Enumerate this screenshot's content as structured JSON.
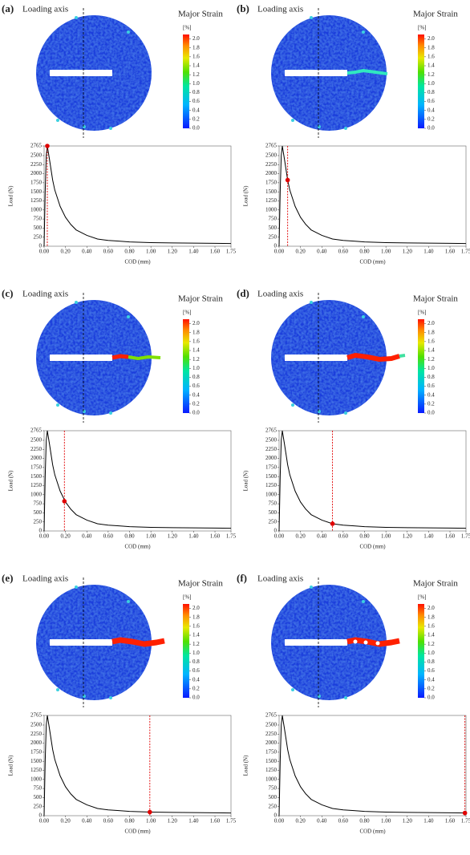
{
  "panels": [
    {
      "label": "(a)",
      "loading_axis": "Loading axis",
      "legend_title": "Major Strain",
      "colorbar": {
        "unit": "[%]",
        "lim": [
          0,
          2.1
        ],
        "ticks": [
          {
            "value": 0,
            "label": "0.0"
          },
          {
            "value": 0.2,
            "label": "0.2"
          },
          {
            "value": 0.4,
            "label": "0.4"
          },
          {
            "value": 0.6,
            "label": "0.6"
          },
          {
            "value": 0.8,
            "label": "0.8"
          },
          {
            "value": 1,
            "label": "1.0"
          },
          {
            "value": 1.2,
            "label": "1.2"
          },
          {
            "value": 1.4,
            "label": "1.4"
          },
          {
            "value": 1.6,
            "label": "1.6"
          },
          {
            "value": 1.8,
            "label": "1.8"
          },
          {
            "value": 2,
            "label": "2.0"
          }
        ]
      }
    },
    {
      "label": "(b)",
      "loading_axis": "Loading axis",
      "legend_title": "Major Strain",
      "colorbar": {
        "unit": "[%]",
        "lim": [
          0,
          2.1
        ],
        "ticks": [
          {
            "value": 0,
            "label": "0.0"
          },
          {
            "value": 0.2,
            "label": "0.2"
          },
          {
            "value": 0.4,
            "label": "0.4"
          },
          {
            "value": 0.6,
            "label": "0.6"
          },
          {
            "value": 0.8,
            "label": "0.8"
          },
          {
            "value": 1,
            "label": "1.0"
          },
          {
            "value": 1.2,
            "label": "1.2"
          },
          {
            "value": 1.4,
            "label": "1.4"
          },
          {
            "value": 1.6,
            "label": "1.6"
          },
          {
            "value": 1.8,
            "label": "1.8"
          },
          {
            "value": 2,
            "label": "2.0"
          }
        ]
      }
    },
    {
      "label": "(c)",
      "loading_axis": "Loading axis",
      "legend_title": "Major Strain",
      "colorbar": {
        "unit": "[%]",
        "lim": [
          0,
          2.1
        ],
        "ticks": [
          {
            "value": 0,
            "label": "0.0"
          },
          {
            "value": 0.2,
            "label": "0.2"
          },
          {
            "value": 0.4,
            "label": "0.4"
          },
          {
            "value": 0.6,
            "label": "0.6"
          },
          {
            "value": 0.8,
            "label": "0.8"
          },
          {
            "value": 1,
            "label": "1.0"
          },
          {
            "value": 1.2,
            "label": "1.2"
          },
          {
            "value": 1.4,
            "label": "1.4"
          },
          {
            "value": 1.6,
            "label": "1.6"
          },
          {
            "value": 1.8,
            "label": "1.8"
          },
          {
            "value": 2,
            "label": "2.0"
          }
        ]
      }
    },
    {
      "label": "(d)",
      "loading_axis": "Loading axis",
      "legend_title": "Major Strain",
      "colorbar": {
        "unit": "[%]",
        "lim": [
          0,
          2.1
        ],
        "ticks": [
          {
            "value": 0,
            "label": "0.0"
          },
          {
            "value": 0.2,
            "label": "0.2"
          },
          {
            "value": 0.4,
            "label": "0.4"
          },
          {
            "value": 0.6,
            "label": "0.6"
          },
          {
            "value": 0.8,
            "label": "0.8"
          },
          {
            "value": 1,
            "label": "1.0"
          },
          {
            "value": 1.2,
            "label": "1.2"
          },
          {
            "value": 1.4,
            "label": "1.4"
          },
          {
            "value": 1.6,
            "label": "1.6"
          },
          {
            "value": 1.8,
            "label": "1.8"
          },
          {
            "value": 2,
            "label": "2.0"
          }
        ]
      }
    },
    {
      "label": "(e)",
      "loading_axis": "Loading axis",
      "legend_title": "Major Strain",
      "colorbar": {
        "unit": "[%]",
        "lim": [
          0,
          2.1
        ],
        "ticks": [
          {
            "value": 0,
            "label": "0.0"
          },
          {
            "value": 0.2,
            "label": "0.2"
          },
          {
            "value": 0.4,
            "label": "0.4"
          },
          {
            "value": 0.6,
            "label": "0.6"
          },
          {
            "value": 0.8,
            "label": "0.8"
          },
          {
            "value": 1,
            "label": "1.0"
          },
          {
            "value": 1.2,
            "label": "1.2"
          },
          {
            "value": 1.4,
            "label": "1.4"
          },
          {
            "value": 1.6,
            "label": "1.6"
          },
          {
            "value": 1.8,
            "label": "1.8"
          },
          {
            "value": 2,
            "label": "2.0"
          }
        ]
      }
    },
    {
      "label": "(f)",
      "loading_axis": "Loading axis",
      "legend_title": "Major Strain",
      "colorbar": {
        "unit": "[%]",
        "lim": [
          0,
          2.1
        ],
        "ticks": [
          {
            "value": 0,
            "label": "0.0"
          },
          {
            "value": 0.2,
            "label": "0.2"
          },
          {
            "value": 0.4,
            "label": "0.4"
          },
          {
            "value": 0.6,
            "label": "0.6"
          },
          {
            "value": 0.8,
            "label": "0.8"
          },
          {
            "value": 1,
            "label": "1.0"
          },
          {
            "value": 1.2,
            "label": "1.2"
          },
          {
            "value": 1.4,
            "label": "1.4"
          },
          {
            "value": 1.6,
            "label": "1.6"
          },
          {
            "value": 1.8,
            "label": "1.8"
          },
          {
            "value": 2,
            "label": "2.0"
          }
        ]
      }
    }
  ],
  "chart_data": [
    {
      "type": "line",
      "x_label": "COD (mm)",
      "y_label": "Load (N)",
      "color": "#000000",
      "x": [
        0,
        0.01,
        0.02,
        0.03,
        0.05,
        0.08,
        0.1,
        0.15,
        0.2,
        0.25,
        0.3,
        0.4,
        0.5,
        0.6,
        0.7,
        0.8,
        1.0,
        1.2,
        1.4,
        1.6,
        1.75
      ],
      "values": [
        0,
        1500,
        2500,
        2765,
        2400,
        1825,
        1550,
        1100,
        800,
        600,
        450,
        300,
        200,
        160,
        140,
        120,
        100,
        90,
        85,
        80,
        75
      ],
      "xlim": [
        0,
        1.75
      ],
      "ylim": [
        0,
        2765
      ],
      "xticks": [
        {
          "value": 0,
          "label": "0.00"
        },
        {
          "value": 0.2,
          "label": "0.20"
        },
        {
          "value": 0.4,
          "label": "0.40"
        },
        {
          "value": 0.6,
          "label": "0.60"
        },
        {
          "value": 0.8,
          "label": "0.80"
        },
        {
          "value": 1,
          "label": "1.00"
        },
        {
          "value": 1.2,
          "label": "1.20"
        },
        {
          "value": 1.4,
          "label": "1.40"
        },
        {
          "value": 1.6,
          "label": "1.60"
        },
        {
          "value": 1.75,
          "label": "1.75"
        }
      ],
      "yticks": [
        0,
        250,
        500,
        750,
        1000,
        1250,
        1500,
        1750,
        2000,
        2250,
        2500,
        2765
      ],
      "marker": {
        "x": 0.03,
        "y": 2765,
        "color": "#e00000"
      }
    },
    {
      "type": "line",
      "x_label": "COD (mm)",
      "y_label": "Load (N)",
      "color": "#000000",
      "x": [
        0,
        0.01,
        0.02,
        0.03,
        0.05,
        0.08,
        0.1,
        0.15,
        0.2,
        0.25,
        0.3,
        0.4,
        0.5,
        0.6,
        0.7,
        0.8,
        1.0,
        1.2,
        1.4,
        1.6,
        1.75
      ],
      "values": [
        0,
        1500,
        2500,
        2765,
        2400,
        1825,
        1550,
        1100,
        800,
        600,
        450,
        300,
        200,
        160,
        140,
        120,
        100,
        90,
        85,
        80,
        75
      ],
      "xlim": [
        0,
        1.75
      ],
      "ylim": [
        0,
        2765
      ],
      "xticks": [
        {
          "value": 0,
          "label": "0.00"
        },
        {
          "value": 0.2,
          "label": "0.20"
        },
        {
          "value": 0.4,
          "label": "0.40"
        },
        {
          "value": 0.6,
          "label": "0.60"
        },
        {
          "value": 0.8,
          "label": "0.80"
        },
        {
          "value": 1,
          "label": "1.00"
        },
        {
          "value": 1.2,
          "label": "1.20"
        },
        {
          "value": 1.4,
          "label": "1.40"
        },
        {
          "value": 1.6,
          "label": "1.60"
        },
        {
          "value": 1.75,
          "label": "1.75"
        }
      ],
      "yticks": [
        0,
        250,
        500,
        750,
        1000,
        1250,
        1500,
        1750,
        2000,
        2250,
        2500,
        2765
      ],
      "marker": {
        "x": 0.08,
        "y": 1825,
        "color": "#e00000"
      }
    },
    {
      "type": "line",
      "x_label": "COD (mm)",
      "y_label": "Load (N)",
      "color": "#000000",
      "x": [
        0,
        0.01,
        0.02,
        0.03,
        0.05,
        0.08,
        0.1,
        0.15,
        0.2,
        0.25,
        0.3,
        0.4,
        0.5,
        0.6,
        0.7,
        0.8,
        1.0,
        1.2,
        1.4,
        1.6,
        1.75
      ],
      "values": [
        0,
        1500,
        2500,
        2765,
        2400,
        1825,
        1550,
        1100,
        800,
        600,
        450,
        300,
        200,
        160,
        140,
        120,
        100,
        90,
        85,
        80,
        75
      ],
      "xlim": [
        0,
        1.75
      ],
      "ylim": [
        0,
        2765
      ],
      "xticks": [
        {
          "value": 0,
          "label": "0.00"
        },
        {
          "value": 0.2,
          "label": "0.20"
        },
        {
          "value": 0.4,
          "label": "0.40"
        },
        {
          "value": 0.6,
          "label": "0.60"
        },
        {
          "value": 0.8,
          "label": "0.80"
        },
        {
          "value": 1,
          "label": "1.00"
        },
        {
          "value": 1.2,
          "label": "1.20"
        },
        {
          "value": 1.4,
          "label": "1.40"
        },
        {
          "value": 1.6,
          "label": "1.60"
        },
        {
          "value": 1.75,
          "label": "1.75"
        }
      ],
      "yticks": [
        0,
        250,
        500,
        750,
        1000,
        1250,
        1500,
        1750,
        2000,
        2250,
        2500,
        2765
      ],
      "marker": {
        "x": 0.19,
        "y": 820,
        "color": "#e00000"
      }
    },
    {
      "type": "line",
      "x_label": "COD (mm)",
      "y_label": "Load (N)",
      "color": "#000000",
      "x": [
        0,
        0.01,
        0.02,
        0.03,
        0.05,
        0.08,
        0.1,
        0.15,
        0.2,
        0.25,
        0.3,
        0.4,
        0.5,
        0.6,
        0.7,
        0.8,
        1.0,
        1.2,
        1.4,
        1.6,
        1.75
      ],
      "values": [
        0,
        1500,
        2500,
        2765,
        2400,
        1825,
        1550,
        1100,
        800,
        600,
        450,
        300,
        200,
        160,
        140,
        120,
        100,
        90,
        85,
        80,
        75
      ],
      "xlim": [
        0,
        1.75
      ],
      "ylim": [
        0,
        2765
      ],
      "xticks": [
        {
          "value": 0,
          "label": "0.00"
        },
        {
          "value": 0.2,
          "label": "0.20"
        },
        {
          "value": 0.4,
          "label": "0.40"
        },
        {
          "value": 0.6,
          "label": "0.60"
        },
        {
          "value": 0.8,
          "label": "0.80"
        },
        {
          "value": 1,
          "label": "1.00"
        },
        {
          "value": 1.2,
          "label": "1.20"
        },
        {
          "value": 1.4,
          "label": "1.40"
        },
        {
          "value": 1.6,
          "label": "1.60"
        },
        {
          "value": 1.75,
          "label": "1.75"
        }
      ],
      "yticks": [
        0,
        250,
        500,
        750,
        1000,
        1250,
        1500,
        1750,
        2000,
        2250,
        2500,
        2765
      ],
      "marker": {
        "x": 0.5,
        "y": 200,
        "color": "#e00000"
      }
    },
    {
      "type": "line",
      "x_label": "COD (mm)",
      "y_label": "Load (N)",
      "color": "#000000",
      "x": [
        0,
        0.01,
        0.02,
        0.03,
        0.05,
        0.08,
        0.1,
        0.15,
        0.2,
        0.25,
        0.3,
        0.4,
        0.5,
        0.6,
        0.7,
        0.8,
        1.0,
        1.2,
        1.4,
        1.6,
        1.75
      ],
      "values": [
        0,
        1500,
        2500,
        2765,
        2400,
        1825,
        1550,
        1100,
        800,
        600,
        450,
        300,
        200,
        160,
        140,
        120,
        100,
        90,
        85,
        80,
        75
      ],
      "xlim": [
        0,
        1.75
      ],
      "ylim": [
        0,
        2765
      ],
      "xticks": [
        {
          "value": 0,
          "label": "0.00"
        },
        {
          "value": 0.2,
          "label": "0.20"
        },
        {
          "value": 0.4,
          "label": "0.40"
        },
        {
          "value": 0.6,
          "label": "0.60"
        },
        {
          "value": 0.8,
          "label": "0.80"
        },
        {
          "value": 1,
          "label": "1.00"
        },
        {
          "value": 1.2,
          "label": "1.20"
        },
        {
          "value": 1.4,
          "label": "1.40"
        },
        {
          "value": 1.6,
          "label": "1.60"
        },
        {
          "value": 1.75,
          "label": "1.75"
        }
      ],
      "yticks": [
        0,
        250,
        500,
        750,
        1000,
        1250,
        1500,
        1750,
        2000,
        2250,
        2500,
        2765
      ],
      "marker": {
        "x": 0.99,
        "y": 100,
        "color": "#e00000"
      }
    },
    {
      "type": "line",
      "x_label": "COD (mm)",
      "y_label": "Load (N)",
      "color": "#000000",
      "x": [
        0,
        0.01,
        0.02,
        0.03,
        0.05,
        0.08,
        0.1,
        0.15,
        0.2,
        0.25,
        0.3,
        0.4,
        0.5,
        0.6,
        0.7,
        0.8,
        1.0,
        1.2,
        1.4,
        1.6,
        1.75
      ],
      "values": [
        0,
        1500,
        2500,
        2765,
        2400,
        1825,
        1550,
        1100,
        800,
        600,
        450,
        300,
        200,
        160,
        140,
        120,
        100,
        90,
        85,
        80,
        75
      ],
      "xlim": [
        0,
        1.75
      ],
      "ylim": [
        0,
        2765
      ],
      "xticks": [
        {
          "value": 0,
          "label": "0.00"
        },
        {
          "value": 0.2,
          "label": "0.20"
        },
        {
          "value": 0.4,
          "label": "0.40"
        },
        {
          "value": 0.6,
          "label": "0.60"
        },
        {
          "value": 0.8,
          "label": "0.80"
        },
        {
          "value": 1,
          "label": "1.00"
        },
        {
          "value": 1.2,
          "label": "1.20"
        },
        {
          "value": 1.4,
          "label": "1.40"
        },
        {
          "value": 1.6,
          "label": "1.60"
        },
        {
          "value": 1.75,
          "label": "1.75"
        }
      ],
      "yticks": [
        0,
        250,
        500,
        750,
        1000,
        1250,
        1500,
        1750,
        2000,
        2250,
        2500,
        2765
      ],
      "marker": {
        "x": 1.74,
        "y": 75,
        "color": "#e00000"
      }
    }
  ]
}
